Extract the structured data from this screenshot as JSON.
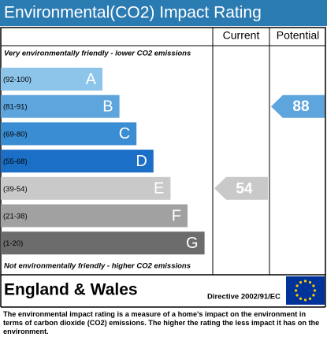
{
  "header": {
    "title": "Environmental(CO2) Impact Rating"
  },
  "columns": {
    "current": "Current",
    "potential": "Potential"
  },
  "top_note": "Very environmentally friendly - lower CO2 emissions",
  "bottom_note": "Not environmentally friendly - higher CO2 emissions",
  "bands": [
    {
      "range": "(92-100)",
      "letter": "A",
      "color": "#8cc4ea"
    },
    {
      "range": "(81-91)",
      "letter": "B",
      "color": "#5ea4dd"
    },
    {
      "range": "(69-80)",
      "letter": "C",
      "color": "#3a8dd3"
    },
    {
      "range": "(55-68)",
      "letter": "D",
      "color": "#1b6fc6"
    },
    {
      "range": "(39-54)",
      "letter": "E",
      "color": "#c9c9c9"
    },
    {
      "range": "(21-38)",
      "letter": "F",
      "color": "#a1a1a1"
    },
    {
      "range": "(1-20)",
      "letter": "G",
      "color": "#6c6c6c"
    }
  ],
  "current": {
    "value": 54,
    "color": "#c9c9c9"
  },
  "potential": {
    "value": 88,
    "color": "#5ea4dd"
  },
  "region": "England & Wales",
  "directive": "Directive 2002/91/EC",
  "footer": "The environmental impact rating is a measure of a home's impact on the environment in terms of carbon dioxide (CO2) emissions. The higher the rating the less impact it has on the environment."
}
